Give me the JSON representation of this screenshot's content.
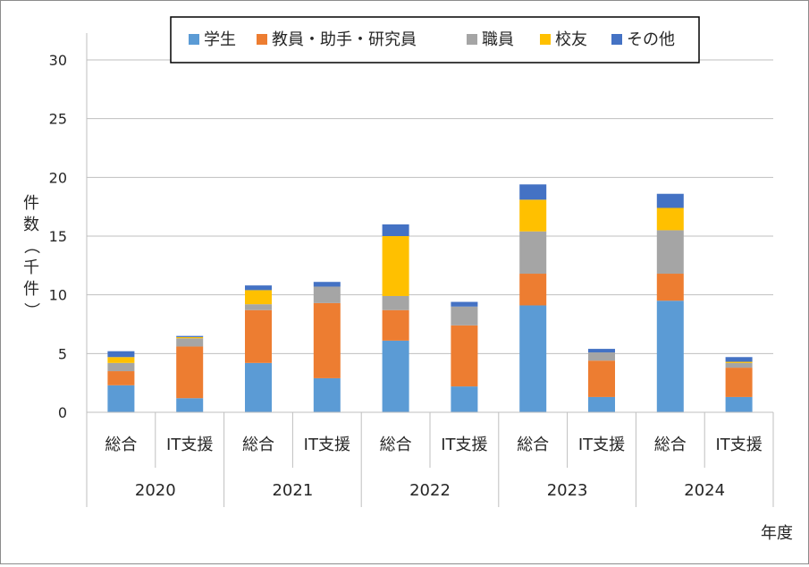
{
  "chart_data": {
    "type": "bar",
    "stacked": true,
    "ylabel": "件数（千件）",
    "xlabel": "年度",
    "ylim": [
      0,
      30
    ],
    "yticks": [
      0,
      5,
      10,
      15,
      20,
      25,
      30
    ],
    "grid": true,
    "legend_position": "top",
    "groups": [
      "2020",
      "2021",
      "2022",
      "2023",
      "2024"
    ],
    "categories": [
      "総合",
      "IT支援",
      "総合",
      "IT支援",
      "総合",
      "IT支援",
      "総合",
      "IT支援",
      "総合",
      "IT支援"
    ],
    "series": [
      {
        "name": "学生",
        "color": "#5B9BD5",
        "values": [
          2.3,
          1.2,
          4.2,
          2.9,
          6.1,
          2.2,
          9.1,
          1.3,
          9.5,
          1.3
        ]
      },
      {
        "name": "教員・助手・研究員",
        "color": "#ED7D31",
        "values": [
          1.2,
          4.4,
          4.5,
          6.4,
          2.6,
          5.2,
          2.7,
          3.1,
          2.3,
          2.5
        ]
      },
      {
        "name": "職員",
        "color": "#A5A5A5",
        "values": [
          0.7,
          0.7,
          0.5,
          1.4,
          1.2,
          1.6,
          3.6,
          0.7,
          3.7,
          0.4
        ]
      },
      {
        "name": "校友",
        "color": "#FFC000",
        "values": [
          0.5,
          0.1,
          1.2,
          0.0,
          5.1,
          0.0,
          2.7,
          0.0,
          1.9,
          0.1
        ]
      },
      {
        "name": "その他",
        "color": "#4472C4",
        "values": [
          0.5,
          0.1,
          0.4,
          0.4,
          1.0,
          0.4,
          1.3,
          0.3,
          1.2,
          0.4
        ]
      }
    ]
  }
}
